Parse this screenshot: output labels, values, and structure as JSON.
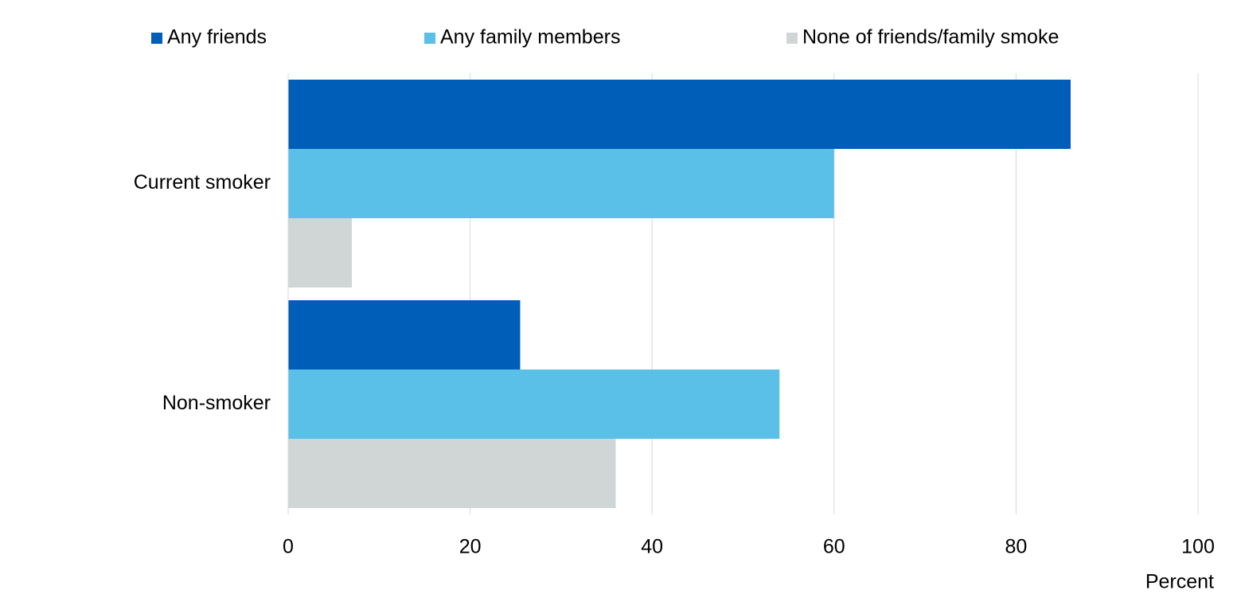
{
  "chart_data": {
    "type": "bar",
    "orientation": "horizontal",
    "categories": [
      "Current smoker",
      "Non-smoker"
    ],
    "series": [
      {
        "name": "Any friends",
        "color": "#005eb8",
        "values": [
          86,
          25.5
        ]
      },
      {
        "name": "Any family members",
        "color": "#5bc0e8",
        "values": [
          60,
          54
        ]
      },
      {
        "name": "None of friends/family smoke",
        "color": "#d0d5d5",
        "values": [
          7,
          36
        ]
      }
    ],
    "xlabel": "Percent",
    "xlim": [
      0,
      100
    ],
    "xticks": [
      0,
      20,
      40,
      60,
      80,
      100
    ],
    "grid": true,
    "legend": "top"
  }
}
